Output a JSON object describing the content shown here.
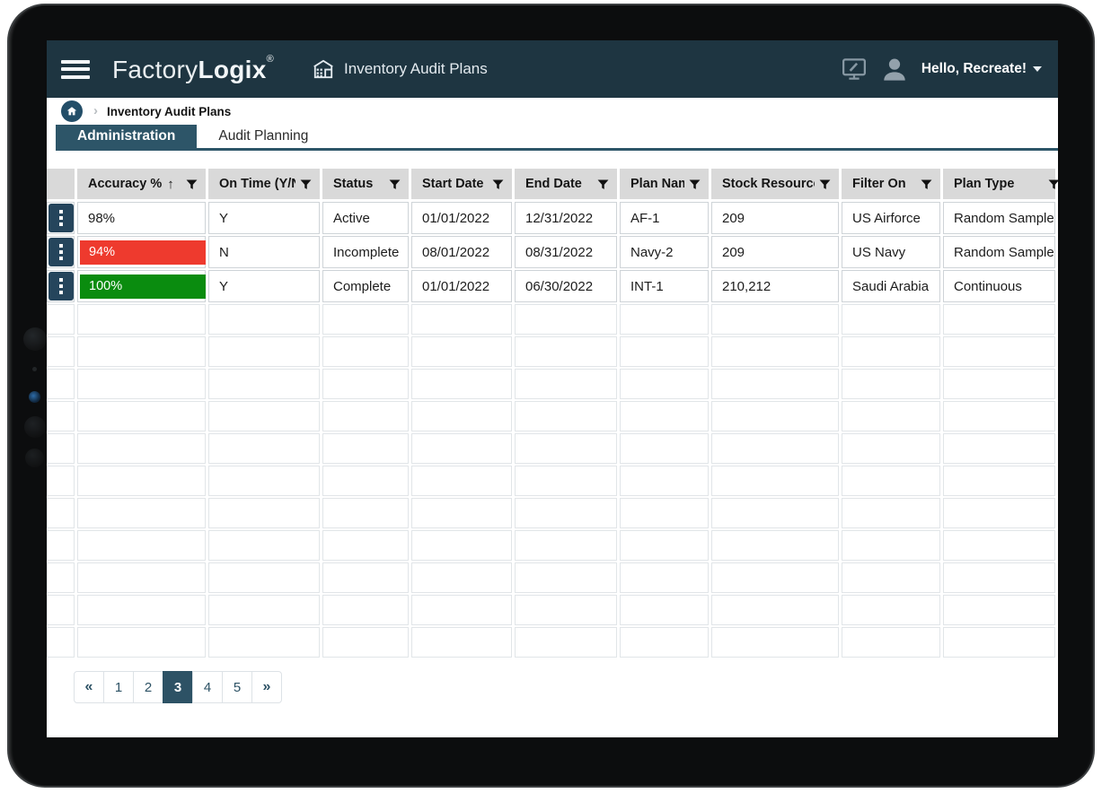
{
  "header": {
    "brand_light": "Factory",
    "brand_bold": "Logix",
    "brand_mark": "®",
    "page_title": "Inventory Audit Plans",
    "greeting": "Hello, Recreate!"
  },
  "breadcrumb": {
    "separator": "›",
    "current": "Inventory Audit Plans"
  },
  "tabs": [
    {
      "label": "Administration",
      "active": true
    },
    {
      "label": "Audit Planning",
      "active": false
    }
  ],
  "table": {
    "sort_indicator": "↑",
    "columns": [
      {
        "label": "",
        "filter": false,
        "sort": false
      },
      {
        "label": "Accuracy %",
        "filter": true,
        "sort": true
      },
      {
        "label": "On Time (Y/N)",
        "filter": true,
        "sort": false
      },
      {
        "label": "Status",
        "filter": true,
        "sort": false
      },
      {
        "label": "Start Date",
        "filter": true,
        "sort": false
      },
      {
        "label": "End Date",
        "filter": true,
        "sort": false
      },
      {
        "label": "Plan Name",
        "filter": true,
        "sort": false
      },
      {
        "label": "Stock Resource",
        "filter": true,
        "sort": false
      },
      {
        "label": "Filter On",
        "filter": true,
        "sort": false
      },
      {
        "label": "Plan Type",
        "filter": true,
        "sort": false
      }
    ],
    "rows": [
      {
        "accuracy": "98%",
        "accuracy_style": "plain",
        "on_time": "Y",
        "status": "Active",
        "start_date": "01/01/2022",
        "end_date": "12/31/2022",
        "plan_name": "AF-1",
        "stock_resource": "209",
        "filter_on": "US Airforce",
        "plan_type": "Random Sample"
      },
      {
        "accuracy": "94%",
        "accuracy_style": "red",
        "on_time": "N",
        "status": "Incomplete",
        "start_date": "08/01/2022",
        "end_date": "08/31/2022",
        "plan_name": "Navy-2",
        "stock_resource": "209",
        "filter_on": "US Navy",
        "plan_type": "Random Sample"
      },
      {
        "accuracy": "100%",
        "accuracy_style": "green",
        "on_time": "Y",
        "status": "Complete",
        "start_date": "01/01/2022",
        "end_date": "06/30/2022",
        "plan_name": "INT-1",
        "stock_resource": "210,212",
        "filter_on": "Saudi Arabia",
        "plan_type": "Continuous"
      }
    ],
    "empty_row_count": 11
  },
  "pagination": {
    "items": [
      "«",
      "1",
      "2",
      "3",
      "4",
      "5",
      "»"
    ],
    "active": "3"
  },
  "colors": {
    "appbar_navy": "#1e3541",
    "accent_navy": "#2d5568",
    "accuracy_red": "#ee3a2e",
    "accuracy_green": "#0a8c0f",
    "header_gray": "#d9d9d9"
  }
}
